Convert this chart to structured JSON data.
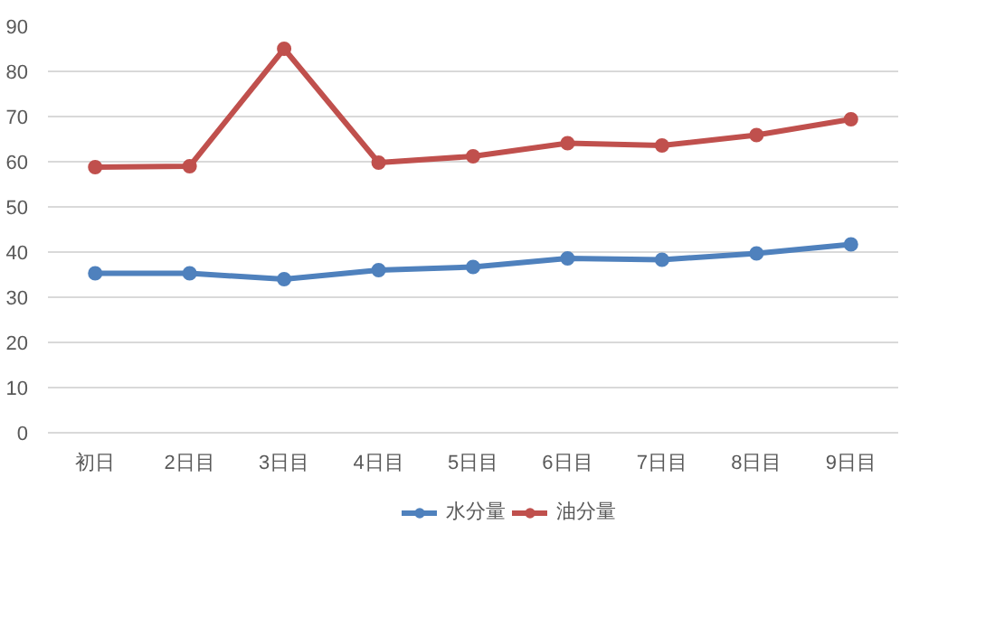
{
  "chart_data": {
    "type": "line",
    "categories": [
      "初日",
      "2日目",
      "3日目",
      "4日目",
      "5日目",
      "6日目",
      "7日目",
      "8日目",
      "9日目"
    ],
    "series": [
      {
        "name": "水分量",
        "color": "#4f81bd",
        "values": [
          35.3,
          35.3,
          34,
          36,
          36.7,
          38.6,
          38.3,
          39.7,
          41.7
        ]
      },
      {
        "name": "油分量",
        "color": "#c0504d",
        "values": [
          58.8,
          59,
          85,
          59.8,
          61.2,
          64.1,
          63.6,
          65.9,
          69.4
        ]
      }
    ],
    "ylim": [
      0,
      90
    ],
    "yticks": [
      0,
      10,
      20,
      30,
      40,
      50,
      60,
      70,
      80,
      90
    ],
    "grid": "y",
    "legend": "bottom",
    "marker": "circle",
    "line_style": "solid"
  }
}
